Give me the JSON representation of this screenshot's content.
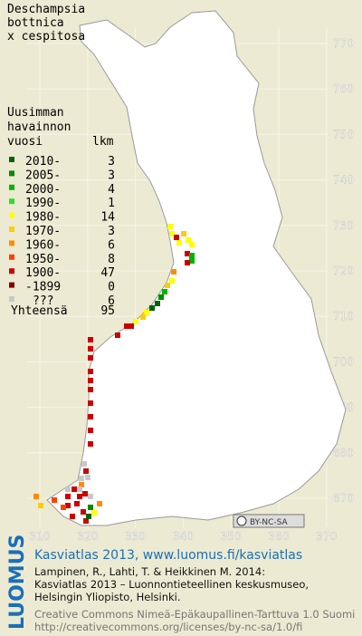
{
  "title": [
    "Deschampsia",
    "bottnica",
    "x cespitosa"
  ],
  "legend": {
    "header": [
      "Uusimman",
      "havainnon",
      "vuosi"
    ],
    "count_header": "lkm",
    "rows": [
      {
        "label": "2010-",
        "count": 3,
        "color": "#006400"
      },
      {
        "label": "2005-",
        "count": 3,
        "color": "#008c00"
      },
      {
        "label": "2000-",
        "count": 4,
        "color": "#00b400"
      },
      {
        "label": "1990-",
        "count": 1,
        "color": "#28e028"
      },
      {
        "label": "1980-",
        "count": 14,
        "color": "#ffff00"
      },
      {
        "label": "1970-",
        "count": 3,
        "color": "#ffcc00"
      },
      {
        "label": "1960-",
        "count": 6,
        "color": "#ff8c00"
      },
      {
        "label": "1950-",
        "count": 8,
        "color": "#ff4000"
      },
      {
        "label": "1900-",
        "count": 47,
        "color": "#cc0000"
      },
      {
        "label": "-1899",
        "count": 0,
        "color": "#800000"
      },
      {
        "label": "???",
        "count": 6,
        "color": "#c8c8c8"
      }
    ],
    "total_label": "Yhteensä",
    "total": 95
  },
  "grid": {
    "y_labels": [
      770,
      760,
      750,
      740,
      730,
      720,
      710,
      700,
      690,
      680,
      670
    ],
    "x_labels": [
      310,
      320,
      330,
      340,
      350,
      360,
      370
    ]
  },
  "license_badge": "BY-NC-SA",
  "footer": {
    "logo": "LUOMUS",
    "headline": "Kasviatlas 2013, www.luomus.fi/kasviatlas",
    "citation": [
      "Lampinen, R., Lahti, T. & Heikkinen M. 2014:",
      "Kasviatlas 2013 – Luonnontieteellinen keskusmuseo,",
      "Helsingin Yliopisto, Helsinki."
    ],
    "license": [
      "Creative Commons Nimeä-Epäkaupallinen-Tarttuva 1.0 Suomi",
      "http://creativecommons.org/licenses/by-nc-sa/1.0/fi"
    ]
  }
}
